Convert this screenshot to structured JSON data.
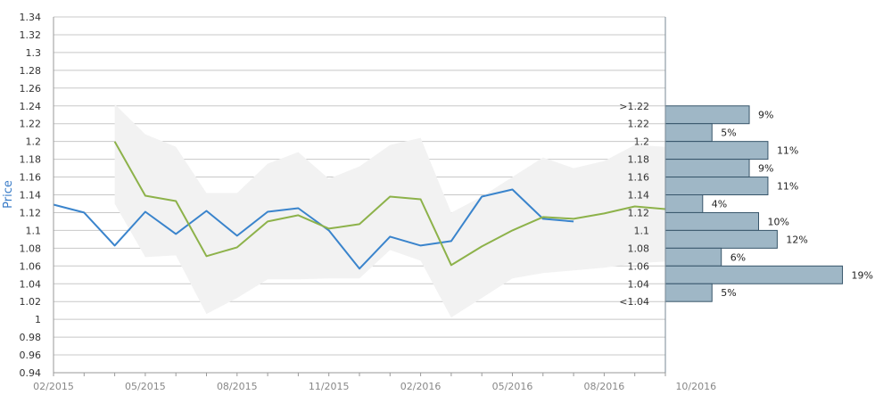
{
  "chart_data": {
    "type": "line",
    "ylabel": "Price",
    "ylim": [
      0.94,
      1.34
    ],
    "y_ticks": [
      "0.94",
      "0.96",
      "0.98",
      "1",
      "1.02",
      "1.04",
      "1.06",
      "1.08",
      "1.1",
      "1.12",
      "1.14",
      "1.16",
      "1.18",
      "1.2",
      "1.22",
      "1.24",
      "1.26",
      "1.28",
      "1.3",
      "1.32",
      "1.34"
    ],
    "x_ticks": [
      "02/2015",
      "05/2015",
      "08/2015",
      "11/2015",
      "02/2016",
      "05/2016",
      "08/2016",
      "10/2016"
    ],
    "grid": true,
    "months": [
      "02/2015",
      "03/2015",
      "04/2015",
      "05/2015",
      "06/2015",
      "07/2015",
      "08/2015",
      "09/2015",
      "10/2015",
      "11/2015",
      "12/2015",
      "01/2016",
      "02/2016",
      "03/2016",
      "04/2016",
      "05/2016",
      "06/2016",
      "07/2016",
      "08/2016",
      "09/2016",
      "10/2016"
    ],
    "series": [
      {
        "color": "#3a84cc",
        "values": [
          1.129,
          1.12,
          1.083,
          1.121,
          1.096,
          1.122,
          1.094,
          1.121,
          1.125,
          1.1,
          1.057,
          1.093,
          1.083,
          1.088,
          1.138,
          1.146,
          1.113,
          1.11,
          null,
          null,
          null
        ]
      },
      {
        "color": "#8db24a",
        "values": [
          null,
          null,
          1.2,
          1.139,
          1.133,
          1.071,
          1.081,
          1.11,
          1.117,
          1.102,
          1.107,
          1.138,
          1.135,
          1.061,
          1.082,
          1.1,
          1.115,
          1.113,
          1.119,
          1.127,
          1.124
        ]
      }
    ],
    "band": {
      "color": "#f2f2f2",
      "upper": [
        null,
        null,
        1.242,
        1.208,
        1.194,
        1.142,
        1.142,
        1.175,
        1.188,
        1.158,
        1.172,
        1.196,
        1.204,
        1.12,
        1.138,
        1.16,
        1.182,
        1.17,
        1.178,
        1.196,
        1.194
      ],
      "lower": [
        null,
        null,
        1.13,
        1.07,
        1.072,
        1.006,
        1.024,
        1.045,
        1.045,
        1.046,
        1.046,
        1.078,
        1.066,
        1.002,
        1.024,
        1.046,
        1.052,
        1.055,
        1.058,
        1.063,
        1.065
      ]
    },
    "histogram": {
      "color": "#9fb7c6",
      "bins": [
        {
          "label": ">1.22",
          "percent": 9,
          "percent_label": "9%"
        },
        {
          "label": "1.22",
          "percent": 5,
          "percent_label": "5%"
        },
        {
          "label": "1.2",
          "percent": 11,
          "percent_label": "11%"
        },
        {
          "label": "1.18",
          "percent": 9,
          "percent_label": "9%"
        },
        {
          "label": "1.16",
          "percent": 11,
          "percent_label": "11%"
        },
        {
          "label": "1.14",
          "percent": 4,
          "percent_label": "4%"
        },
        {
          "label": "1.12",
          "percent": 10,
          "percent_label": "10%"
        },
        {
          "label": "1.1",
          "percent": 12,
          "percent_label": "12%"
        },
        {
          "label": "1.08",
          "percent": 6,
          "percent_label": "6%"
        },
        {
          "label": "1.06",
          "percent": 19,
          "percent_label": "19%"
        },
        {
          "label": "1.04",
          "percent": 5,
          "percent_label": "5%"
        },
        {
          "label": "<1.04",
          "percent": null,
          "percent_label": ""
        }
      ]
    }
  }
}
